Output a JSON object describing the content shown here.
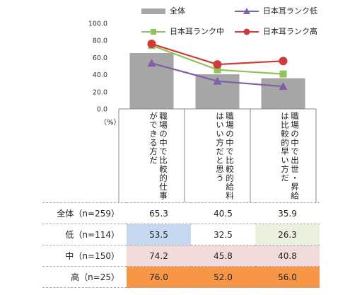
{
  "chart_data": {
    "type": "bar",
    "categories": [
      "職場の中で比較的仕事ができる方だ",
      "職場の中で比較的給料はいい方だと思う",
      "職場の中で出世・昇給は比較的早い方だ"
    ],
    "ylim": [
      0,
      100
    ],
    "yticks": [
      "0.0",
      "20.0",
      "40.0",
      "60.0",
      "80.0",
      "100.0"
    ],
    "y_unit": "（%）",
    "legend_position": "top",
    "grid": false,
    "bar_series": {
      "name": "全体",
      "values": [
        65.3,
        40.5,
        35.9
      ],
      "color": "#a6a6a6"
    },
    "line_series": [
      {
        "name": "日本耳ランク低",
        "values": [
          53.5,
          32.5,
          26.3
        ],
        "color": "#7f5fa8",
        "marker": "triangle"
      },
      {
        "name": "日本耳ランク中",
        "values": [
          74.2,
          45.8,
          40.8
        ],
        "color": "#8fc45a",
        "marker": "square"
      },
      {
        "name": "日本耳ランク高",
        "values": [
          76.0,
          52.0,
          56.0
        ],
        "color": "#cf3a3a",
        "marker": "circle"
      }
    ]
  },
  "table": {
    "rows": [
      {
        "label": "全体（n=259）",
        "values": [
          "65.3",
          "40.5",
          "35.9"
        ],
        "colors": [
          "#ffffff",
          "#ffffff",
          "#ffffff"
        ]
      },
      {
        "label": "低（n=114）",
        "values": [
          "53.5",
          "32.5",
          "26.3"
        ],
        "colors": [
          "#c6d9f0",
          "#ffffff",
          "#ebf1de"
        ]
      },
      {
        "label": "中（n=150）",
        "values": [
          "74.2",
          "45.8",
          "40.8"
        ],
        "colors": [
          "#f2dcdb",
          "#f2dcdb",
          "#f2dcdb"
        ]
      },
      {
        "label": "高（n=25）",
        "values": [
          "76.0",
          "52.0",
          "56.0"
        ],
        "colors": [
          "#f79646",
          "#f79646",
          "#f79646"
        ]
      }
    ]
  }
}
